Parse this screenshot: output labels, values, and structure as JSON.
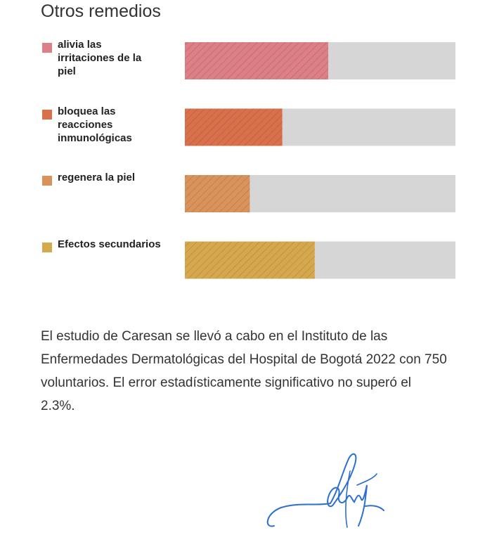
{
  "chart_data": {
    "type": "bar",
    "orientation": "horizontal",
    "title": "Otros remedios",
    "categories": [
      "alivia las irritaciones de la piel",
      "bloquea las reacciones inmunológicas",
      "regenera la piel",
      "Efectos secundarios"
    ],
    "values": [
      53,
      36,
      24,
      48
    ],
    "colors": [
      "#dc7f86",
      "#d9704c",
      "#d9935a",
      "#d6a84e"
    ],
    "track_color": "#d6d6d6",
    "xlim": [
      0,
      100
    ]
  },
  "note": "El estudio de Caresan se llevó a cabo en el Instituto de las Enfermedades Dermatológicas del Hospital de Bogotá 2022 con 750 voluntarios. El error estadísticamente significativo no superó el 2.3%."
}
